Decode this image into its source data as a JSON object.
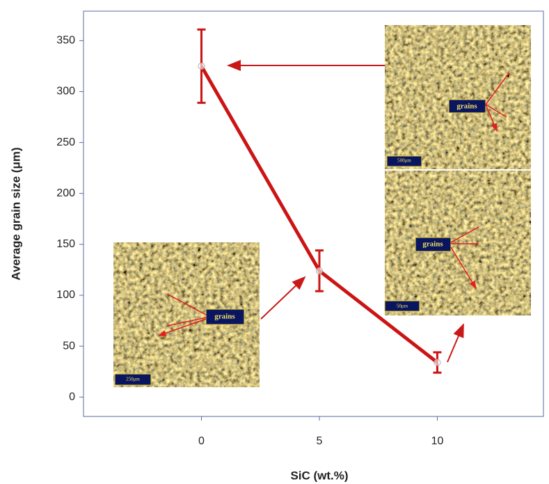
{
  "chart_data": {
    "type": "line",
    "xlabel": "SiC (wt.%)",
    "ylabel": "Average grain size (μm)",
    "x": [
      0,
      5,
      10
    ],
    "values": [
      325,
      124,
      34
    ],
    "errors": [
      36,
      20,
      10
    ],
    "color": "#cc1414",
    "xlim": [
      -5,
      14.5
    ],
    "ylim": [
      -19,
      379
    ],
    "xticks": [
      0,
      5,
      10
    ],
    "yticks": [
      0,
      50,
      100,
      150,
      200,
      250,
      300,
      350
    ],
    "insets": [
      {
        "label": "grains",
        "scale": "500μm"
      },
      {
        "label": "grains",
        "scale": "50μm"
      },
      {
        "label": "grains",
        "scale": "250μm"
      }
    ]
  }
}
